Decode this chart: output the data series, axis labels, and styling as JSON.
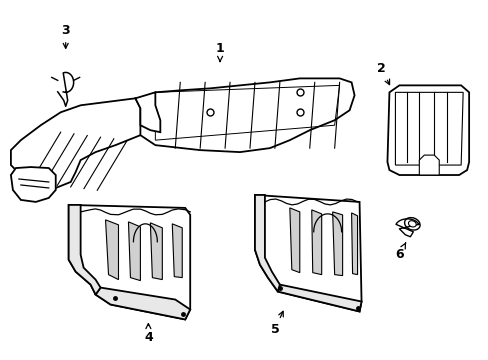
{
  "background_color": "#ffffff",
  "line_color": "#000000",
  "line_width": 1.3,
  "fig_width": 4.89,
  "fig_height": 3.6,
  "dpi": 100
}
